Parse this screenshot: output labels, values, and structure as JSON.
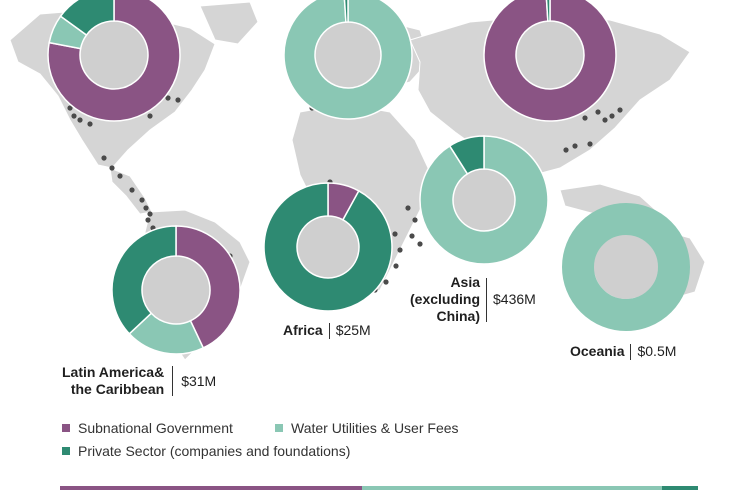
{
  "colors": {
    "subnational": "#8a5484",
    "utilities": "#8ac7b4",
    "private": "#2e8a72",
    "land": "#d5d5d5",
    "donut_hole": "#cfcfcf",
    "dot": "#4a4a4a"
  },
  "legend": [
    {
      "label": "Subnational Government",
      "color_key": "subnational"
    },
    {
      "label": "Water Utilities & User Fees",
      "color_key": "utilities"
    },
    {
      "label": "Private Sector (companies and foundations)",
      "color_key": "private"
    }
  ],
  "chart_data": {
    "type": "pie",
    "variant": "donut-map",
    "series_names": [
      "Subnational Government",
      "Water Utilities & User Fees",
      "Private Sector (companies and foundations)"
    ],
    "regions": [
      {
        "name": "",
        "amount": "",
        "shares": [
          78,
          7,
          15
        ]
      },
      {
        "name": "",
        "amount": "",
        "shares": [
          0,
          99,
          1
        ]
      },
      {
        "name": "",
        "amount": "",
        "shares": [
          99,
          0,
          1
        ]
      },
      {
        "name": "Latin America& the Caribbean",
        "name_lines": [
          "Latin America&",
          "the Caribbean"
        ],
        "amount": "$31M",
        "shares": [
          43,
          20,
          37
        ]
      },
      {
        "name": "Africa",
        "name_lines": [
          "Africa"
        ],
        "amount": "$25M",
        "shares": [
          8,
          0,
          92
        ]
      },
      {
        "name": "Asia (excluding China)",
        "name_lines": [
          "Asia",
          "(excluding",
          "China)"
        ],
        "amount": "$436M",
        "shares": [
          0,
          91,
          9
        ]
      },
      {
        "name": "Oceania",
        "name_lines": [
          "Oceania"
        ],
        "amount": "$0.5M",
        "shares": [
          0,
          100,
          0
        ]
      }
    ]
  }
}
